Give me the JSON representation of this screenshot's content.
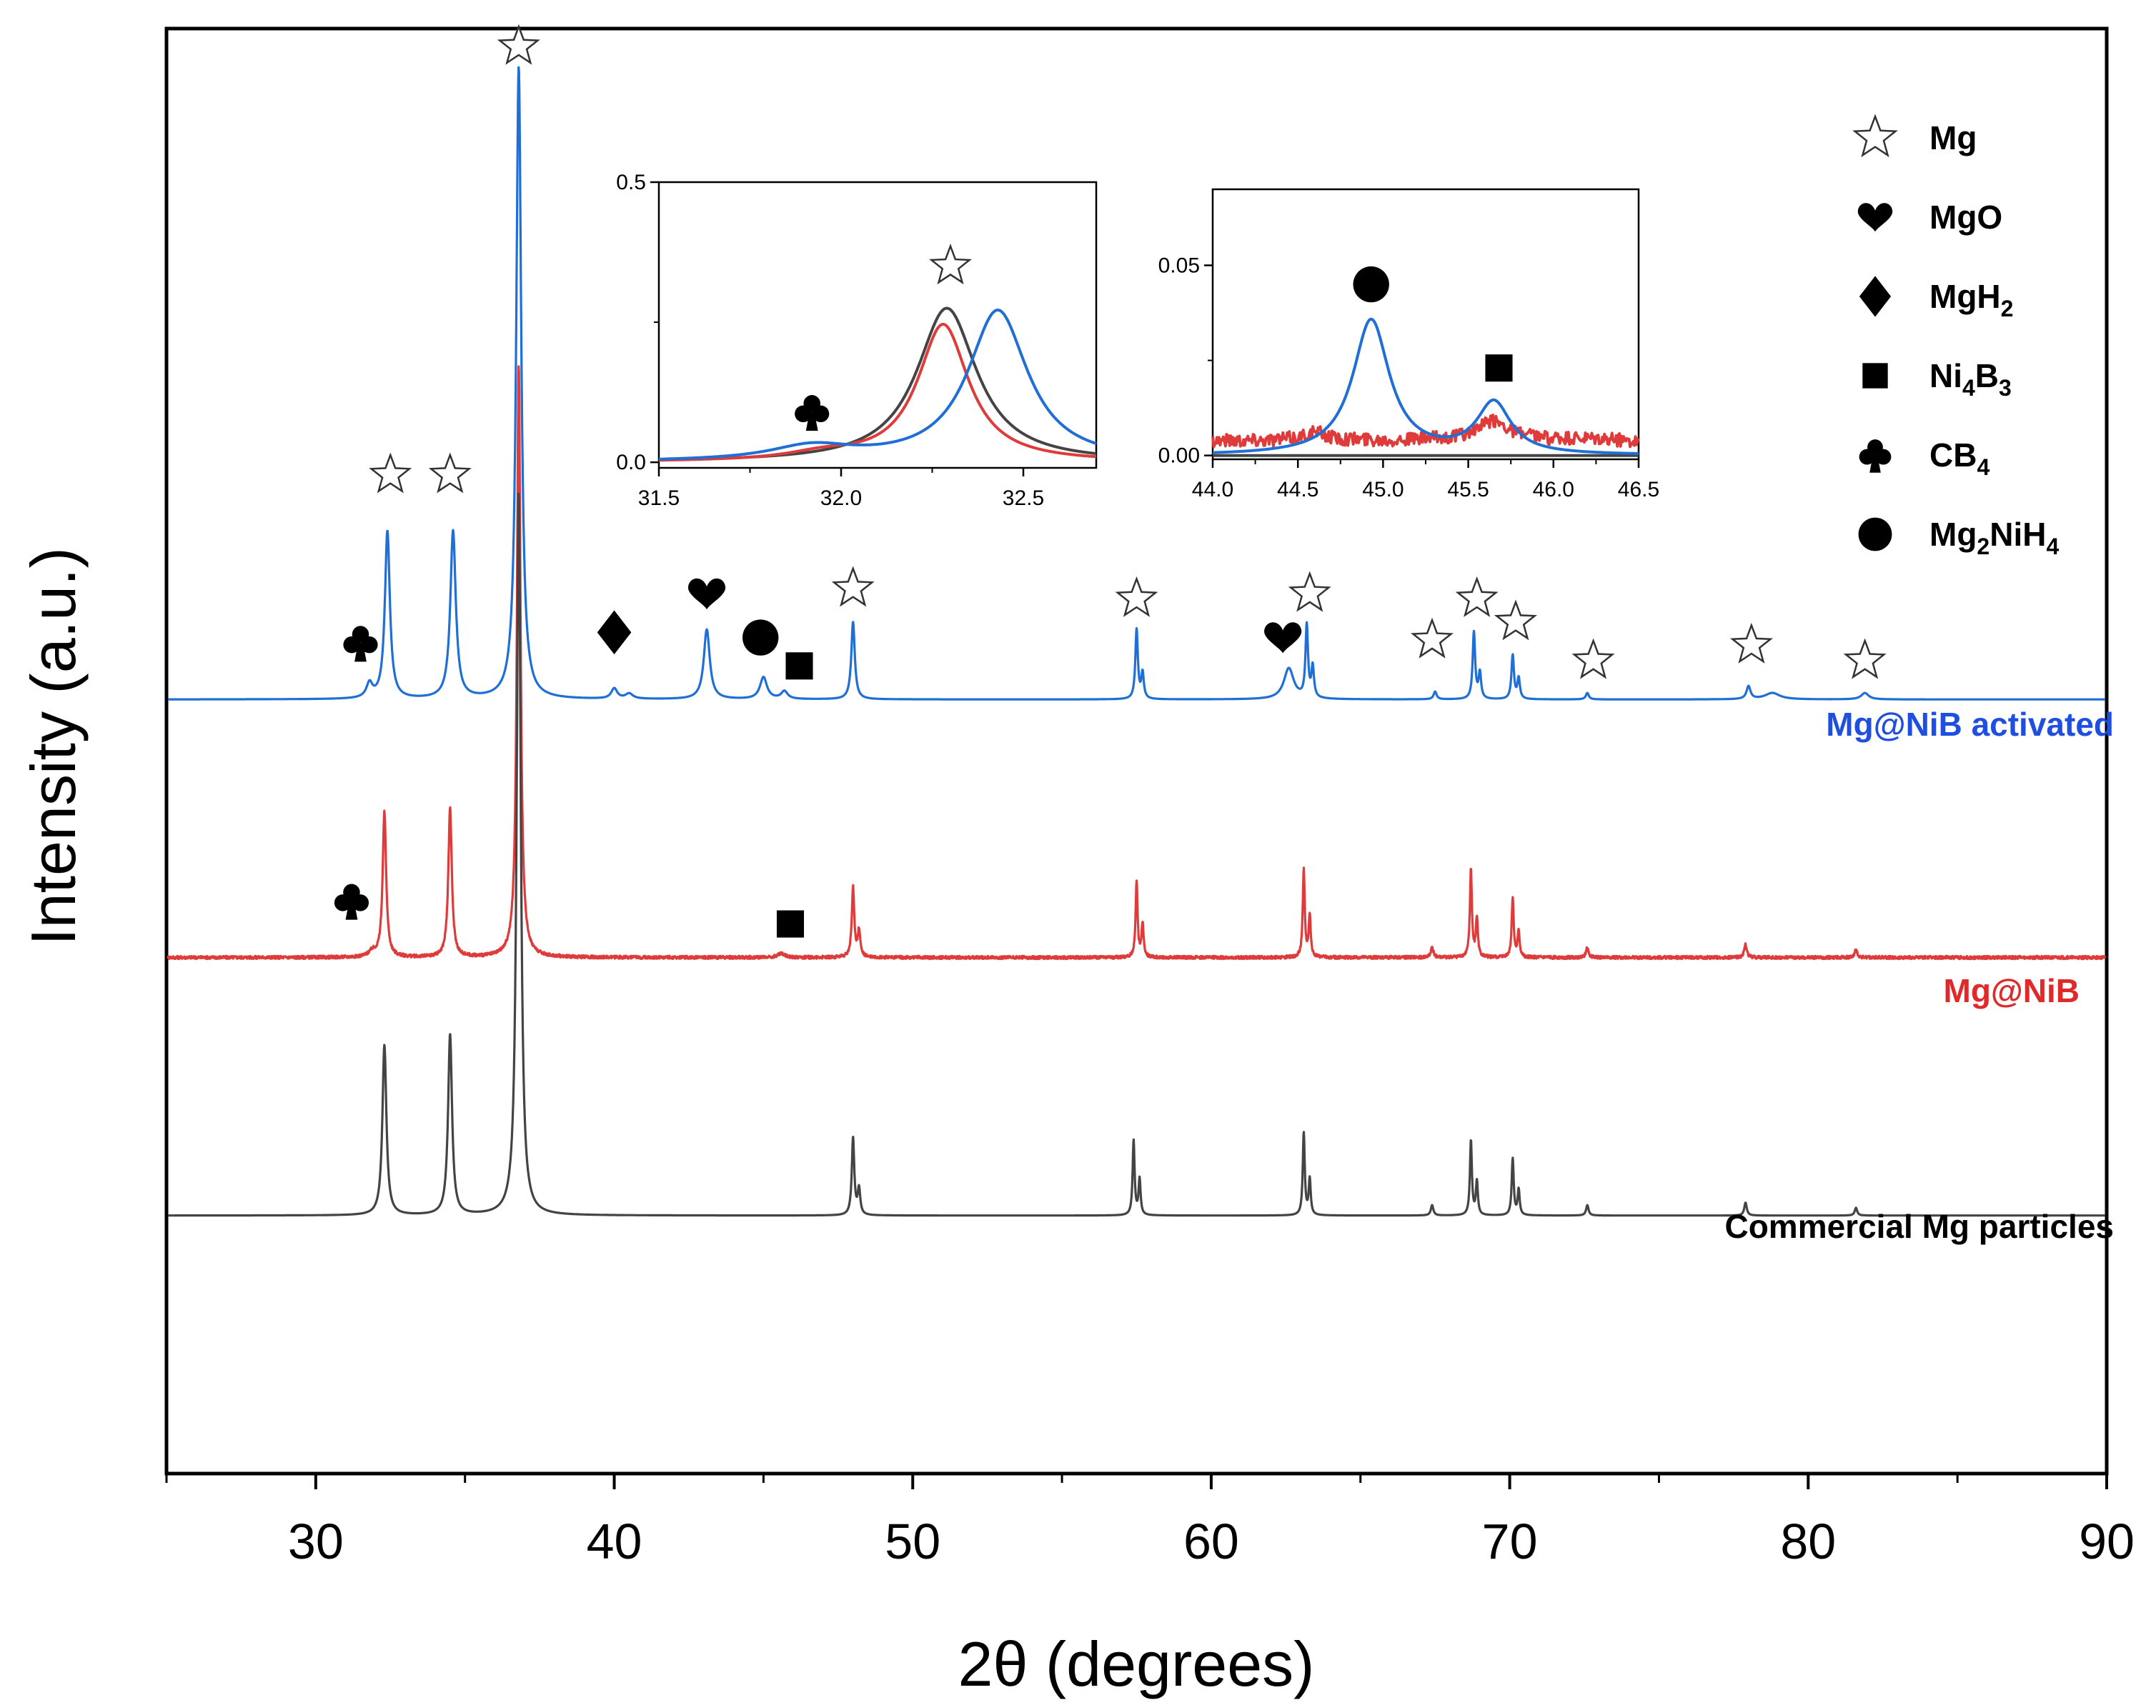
{
  "chart_data": {
    "type": "line",
    "main": {
      "xlabel": "2θ (degrees)",
      "ylabel": "Intensity (a.u.)",
      "xlim": [
        25,
        90
      ],
      "xticks": [
        30,
        40,
        50,
        60,
        70,
        80,
        90
      ],
      "xtick_labels": [
        "30",
        "40",
        "50",
        "60",
        "70",
        "80",
        "90"
      ],
      "ylim": [
        -0.6,
        5.0
      ],
      "grid": false,
      "series": [
        {
          "name": "Mg@NiB activated",
          "color": "#1f6fd6",
          "offset": 2.4,
          "peaks": [
            {
              "x": 31.8,
              "h": 0.055,
              "w": 0.12
            },
            {
              "x": 32.4,
              "h": 0.65,
              "w": 0.1
            },
            {
              "x": 34.6,
              "h": 0.65,
              "w": 0.11
            },
            {
              "x": 36.8,
              "h": 2.45,
              "w": 0.1
            },
            {
              "x": 40.0,
              "h": 0.04,
              "w": 0.12
            },
            {
              "x": 40.5,
              "h": 0.02,
              "w": 0.15
            },
            {
              "x": 43.1,
              "h": 0.27,
              "w": 0.12
            },
            {
              "x": 45.0,
              "h": 0.085,
              "w": 0.14
            },
            {
              "x": 45.7,
              "h": 0.03,
              "w": 0.13
            },
            {
              "x": 48.0,
              "h": 0.3,
              "w": 0.07
            },
            {
              "x": 57.5,
              "h": 0.27,
              "w": 0.05
            },
            {
              "x": 57.7,
              "h": 0.1,
              "w": 0.05
            },
            {
              "x": 62.6,
              "h": 0.12,
              "w": 0.2
            },
            {
              "x": 63.2,
              "h": 0.28,
              "w": 0.05
            },
            {
              "x": 63.4,
              "h": 0.12,
              "w": 0.05
            },
            {
              "x": 67.5,
              "h": 0.03,
              "w": 0.06
            },
            {
              "x": 68.8,
              "h": 0.26,
              "w": 0.05
            },
            {
              "x": 69.0,
              "h": 0.1,
              "w": 0.05
            },
            {
              "x": 70.1,
              "h": 0.17,
              "w": 0.05
            },
            {
              "x": 70.3,
              "h": 0.08,
              "w": 0.05
            },
            {
              "x": 72.6,
              "h": 0.025,
              "w": 0.06
            },
            {
              "x": 78.0,
              "h": 0.05,
              "w": 0.08
            },
            {
              "x": 78.8,
              "h": 0.025,
              "w": 0.3
            },
            {
              "x": 81.9,
              "h": 0.025,
              "w": 0.15
            }
          ]
        },
        {
          "name": "Mg@NiB",
          "color": "#e03b3b",
          "offset": 1.4,
          "peaks": [
            {
              "x": 31.9,
              "h": 0.02,
              "w": 0.15
            },
            {
              "x": 32.3,
              "h": 0.56,
              "w": 0.07
            },
            {
              "x": 34.5,
              "h": 0.58,
              "w": 0.07
            },
            {
              "x": 36.8,
              "h": 2.3,
              "w": 0.07
            },
            {
              "x": 45.6,
              "h": 0.015,
              "w": 0.15
            },
            {
              "x": 48.0,
              "h": 0.27,
              "w": 0.05
            },
            {
              "x": 48.2,
              "h": 0.1,
              "w": 0.05
            },
            {
              "x": 57.5,
              "h": 0.29,
              "w": 0.04
            },
            {
              "x": 57.7,
              "h": 0.13,
              "w": 0.04
            },
            {
              "x": 63.1,
              "h": 0.34,
              "w": 0.04
            },
            {
              "x": 63.3,
              "h": 0.16,
              "w": 0.04
            },
            {
              "x": 67.4,
              "h": 0.04,
              "w": 0.05
            },
            {
              "x": 68.7,
              "h": 0.34,
              "w": 0.04
            },
            {
              "x": 68.9,
              "h": 0.15,
              "w": 0.04
            },
            {
              "x": 70.1,
              "h": 0.23,
              "w": 0.04
            },
            {
              "x": 70.3,
              "h": 0.1,
              "w": 0.04
            },
            {
              "x": 72.6,
              "h": 0.04,
              "w": 0.05
            },
            {
              "x": 77.9,
              "h": 0.05,
              "w": 0.05
            },
            {
              "x": 81.6,
              "h": 0.03,
              "w": 0.05
            }
          ]
        },
        {
          "name": "Commercial Mg particles",
          "color": "#444444",
          "offset": 0.4,
          "peaks": [
            {
              "x": 32.3,
              "h": 0.66,
              "w": 0.08
            },
            {
              "x": 34.5,
              "h": 0.7,
              "w": 0.08
            },
            {
              "x": 36.8,
              "h": 2.8,
              "w": 0.08
            },
            {
              "x": 48.0,
              "h": 0.3,
              "w": 0.05
            },
            {
              "x": 48.2,
              "h": 0.1,
              "w": 0.05
            },
            {
              "x": 57.4,
              "h": 0.29,
              "w": 0.04
            },
            {
              "x": 57.6,
              "h": 0.14,
              "w": 0.04
            },
            {
              "x": 63.1,
              "h": 0.32,
              "w": 0.04
            },
            {
              "x": 63.3,
              "h": 0.14,
              "w": 0.04
            },
            {
              "x": 67.4,
              "h": 0.04,
              "w": 0.05
            },
            {
              "x": 68.7,
              "h": 0.29,
              "w": 0.04
            },
            {
              "x": 68.9,
              "h": 0.13,
              "w": 0.04
            },
            {
              "x": 70.1,
              "h": 0.22,
              "w": 0.04
            },
            {
              "x": 70.3,
              "h": 0.1,
              "w": 0.04
            },
            {
              "x": 72.6,
              "h": 0.04,
              "w": 0.05
            },
            {
              "x": 77.9,
              "h": 0.05,
              "w": 0.05
            },
            {
              "x": 81.6,
              "h": 0.03,
              "w": 0.05
            }
          ]
        }
      ],
      "series_labels": [
        "Mg@NiB activated",
        "Mg@NiB",
        "Commercial Mg particles"
      ],
      "markers": [
        {
          "symbol": "star",
          "x": 36.8,
          "y": 4.93
        },
        {
          "symbol": "star",
          "x": 32.5,
          "y": 3.27
        },
        {
          "symbol": "star",
          "x": 34.5,
          "y": 3.27
        },
        {
          "symbol": "star",
          "x": 48.0,
          "y": 2.83
        },
        {
          "symbol": "star",
          "x": 57.5,
          "y": 2.79
        },
        {
          "symbol": "star",
          "x": 63.3,
          "y": 2.81
        },
        {
          "symbol": "star",
          "x": 67.4,
          "y": 2.63
        },
        {
          "symbol": "star",
          "x": 68.9,
          "y": 2.79
        },
        {
          "symbol": "star",
          "x": 70.2,
          "y": 2.7
        },
        {
          "symbol": "star",
          "x": 72.8,
          "y": 2.55
        },
        {
          "symbol": "star",
          "x": 78.1,
          "y": 2.61
        },
        {
          "symbol": "star",
          "x": 81.9,
          "y": 2.55
        },
        {
          "symbol": "heart",
          "x": 43.1,
          "y": 2.81
        },
        {
          "symbol": "heart",
          "x": 62.4,
          "y": 2.64
        },
        {
          "symbol": "diamond",
          "x": 40.0,
          "y": 2.66
        },
        {
          "symbol": "circle",
          "x": 44.9,
          "y": 2.64
        },
        {
          "symbol": "square",
          "x": 46.2,
          "y": 2.53
        },
        {
          "symbol": "square",
          "x": 45.9,
          "y": 1.53
        },
        {
          "symbol": "club",
          "x": 31.5,
          "y": 2.62
        },
        {
          "symbol": "club",
          "x": 31.2,
          "y": 1.62
        }
      ]
    },
    "inset1": {
      "xlim": [
        31.5,
        32.7
      ],
      "ylim": [
        -0.01,
        0.5
      ],
      "xticks": [
        31.5,
        32.0,
        32.5
      ],
      "xtick_labels": [
        "31.5",
        "32.0",
        "32.5"
      ],
      "yticks": [
        0.0,
        0.5
      ],
      "ytick_labels": [
        "0.0",
        "0.5"
      ],
      "series": [
        {
          "name": "Commercial Mg particles",
          "color": "#444444",
          "baseline": 0.0,
          "peaks": [
            {
              "x": 32.29,
              "h": 0.275,
              "w": 0.1
            }
          ]
        },
        {
          "name": "Mg@NiB",
          "color": "#e03b3b",
          "baseline": 0.0,
          "peaks": [
            {
              "x": 32.28,
              "h": 0.245,
              "w": 0.085
            },
            {
              "x": 31.95,
              "h": 0.012,
              "w": 0.12
            }
          ]
        },
        {
          "name": "Mg@NiB activated",
          "color": "#1f6fd6",
          "baseline": 0.0,
          "peaks": [
            {
              "x": 32.43,
              "h": 0.27,
              "w": 0.1
            },
            {
              "x": 31.92,
              "h": 0.025,
              "w": 0.14
            }
          ]
        }
      ],
      "markers": [
        {
          "symbol": "star",
          "x": 32.3,
          "y": 0.35
        },
        {
          "symbol": "club",
          "x": 31.92,
          "y": 0.09
        }
      ]
    },
    "inset2": {
      "xlim": [
        44.0,
        46.5
      ],
      "ylim": [
        -0.001,
        0.07
      ],
      "xticks": [
        44.0,
        44.5,
        45.0,
        45.5,
        46.0,
        46.5
      ],
      "xtick_labels": [
        "44.0",
        "44.5",
        "45.0",
        "45.5",
        "46.0",
        "46.5"
      ],
      "yticks": [
        0.0,
        0.05
      ],
      "ytick_labels": [
        "0.00",
        "0.05"
      ],
      "series": [
        {
          "name": "Commercial Mg particles",
          "color": "#444444",
          "baseline": 0.0,
          "peaks": []
        },
        {
          "name": "Mg@NiB",
          "color": "#e03b3b",
          "baseline": 0.004,
          "noise": 0.0018,
          "peaks": [
            {
              "x": 45.65,
              "h": 0.005,
              "w": 0.12
            },
            {
              "x": 44.6,
              "h": 0.002,
              "w": 0.08
            }
          ]
        },
        {
          "name": "Mg@NiB activated",
          "color": "#1f6fd6",
          "baseline": 0.0,
          "peaks": [
            {
              "x": 44.93,
              "h": 0.0355,
              "w": 0.13
            },
            {
              "x": 45.65,
              "h": 0.0135,
              "w": 0.12
            }
          ]
        }
      ],
      "markers": [
        {
          "symbol": "circle",
          "x": 44.93,
          "y": 0.045
        },
        {
          "symbol": "square",
          "x": 45.68,
          "y": 0.023
        }
      ]
    },
    "legend": {
      "position": "top-right",
      "entries": [
        {
          "symbol": "star",
          "label": "Mg",
          "sub": "",
          "tail": ""
        },
        {
          "symbol": "heart",
          "label": "MgO",
          "sub": "",
          "tail": ""
        },
        {
          "symbol": "diamond",
          "label": "MgH",
          "sub": "2",
          "tail": ""
        },
        {
          "symbol": "square",
          "label": "Ni",
          "sub": "4",
          "tail": "B",
          "sub2": "3"
        },
        {
          "symbol": "club",
          "label": "CB",
          "sub": "4",
          "tail": ""
        },
        {
          "symbol": "circle",
          "label": "Mg",
          "sub": "2",
          "tail": "NiH",
          "sub2": "4"
        }
      ]
    }
  }
}
